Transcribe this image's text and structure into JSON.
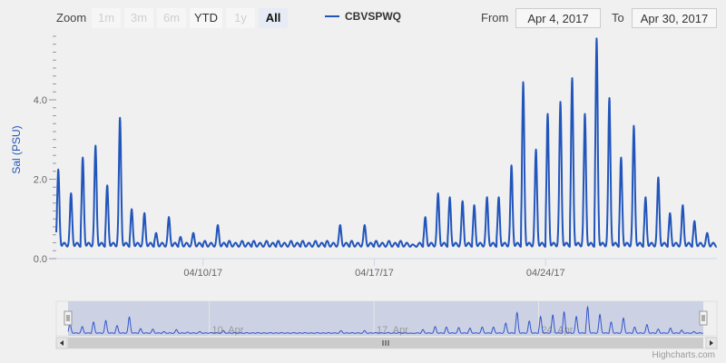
{
  "rangeSelector": {
    "zoom_label": "Zoom",
    "buttons": [
      {
        "label": "1m",
        "state": "disabled"
      },
      {
        "label": "3m",
        "state": "disabled"
      },
      {
        "label": "6m",
        "state": "disabled"
      },
      {
        "label": "YTD",
        "state": "enabled"
      },
      {
        "label": "1y",
        "state": "disabled"
      },
      {
        "label": "All",
        "state": "active"
      }
    ],
    "from_label": "From",
    "from_value": "Apr 4, 2017",
    "to_label": "To",
    "to_value": "Apr 30, 2017"
  },
  "credits": "Highcharts.com",
  "colors": {
    "series": "#2255bb",
    "navigator_fill": "#c5cde0"
  },
  "chart_data": {
    "type": "line",
    "series": [
      {
        "name": "CBVSPWQ"
      }
    ],
    "ylabel": "Sal (PSU)",
    "ylim": [
      0,
      5.6
    ],
    "yticks": [
      "0.0",
      "2.0",
      "4.0"
    ],
    "xlim": [
      "2017-04-04",
      "2017-04-30"
    ],
    "xticks": [
      "04/10/17",
      "04/17/17",
      "04/24/17"
    ],
    "navigator_ticks": [
      "10. Apr",
      "17. Apr",
      "24. Apr"
    ],
    "daily_peaks": [
      {
        "date": "2017-04-04",
        "peaks": [
          2.2,
          1.6
        ]
      },
      {
        "date": "2017-04-05",
        "peaks": [
          2.5,
          2.8
        ]
      },
      {
        "date": "2017-04-06",
        "peaks": [
          1.8,
          3.5
        ]
      },
      {
        "date": "2017-04-07",
        "peaks": [
          1.2,
          1.1
        ]
      },
      {
        "date": "2017-04-08",
        "peaks": [
          0.6,
          1.0
        ]
      },
      {
        "date": "2017-04-09",
        "peaks": [
          0.5,
          0.6
        ]
      },
      {
        "date": "2017-04-10",
        "peaks": [
          0.4,
          0.8
        ]
      },
      {
        "date": "2017-04-11",
        "peaks": [
          0.4,
          0.4
        ]
      },
      {
        "date": "2017-04-12",
        "peaks": [
          0.4,
          0.4
        ]
      },
      {
        "date": "2017-04-13",
        "peaks": [
          0.4,
          0.4
        ]
      },
      {
        "date": "2017-04-14",
        "peaks": [
          0.4,
          0.4
        ]
      },
      {
        "date": "2017-04-15",
        "peaks": [
          0.4,
          0.8
        ]
      },
      {
        "date": "2017-04-16",
        "peaks": [
          0.4,
          0.8
        ]
      },
      {
        "date": "2017-04-17",
        "peaks": [
          0.4,
          0.4
        ]
      },
      {
        "date": "2017-04-18",
        "peaks": [
          0.4,
          0.3
        ]
      },
      {
        "date": "2017-04-19",
        "peaks": [
          1.0,
          1.6
        ]
      },
      {
        "date": "2017-04-20",
        "peaks": [
          1.5,
          1.4
        ]
      },
      {
        "date": "2017-04-21",
        "peaks": [
          1.3,
          1.5
        ]
      },
      {
        "date": "2017-04-22",
        "peaks": [
          1.5,
          2.3
        ]
      },
      {
        "date": "2017-04-23",
        "peaks": [
          4.4,
          2.7
        ]
      },
      {
        "date": "2017-04-24",
        "peaks": [
          3.6,
          3.9
        ]
      },
      {
        "date": "2017-04-25",
        "peaks": [
          4.5,
          3.6
        ]
      },
      {
        "date": "2017-04-26",
        "peaks": [
          5.5,
          4.0
        ]
      },
      {
        "date": "2017-04-27",
        "peaks": [
          2.5,
          3.3
        ]
      },
      {
        "date": "2017-04-28",
        "peaks": [
          1.5,
          2.0
        ]
      },
      {
        "date": "2017-04-29",
        "peaks": [
          1.1,
          1.3
        ]
      },
      {
        "date": "2017-04-30",
        "peaks": [
          0.9,
          0.6
        ]
      }
    ]
  }
}
